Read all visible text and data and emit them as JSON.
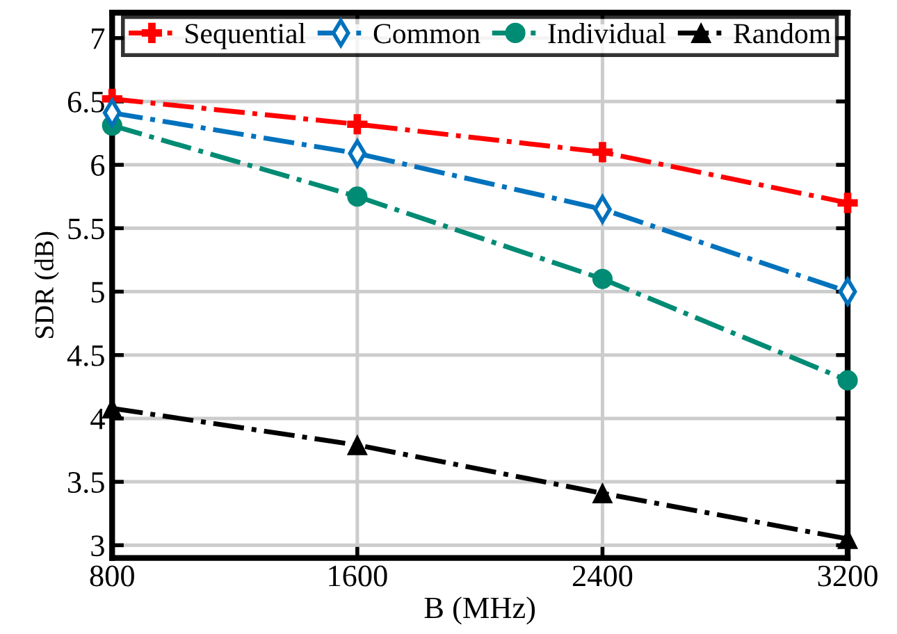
{
  "chart_data": {
    "type": "line",
    "xlabel": "B (MHz)",
    "ylabel": "SDR (dB)",
    "x": [
      800,
      1600,
      2400,
      3200
    ],
    "series": [
      {
        "name": "Sequential",
        "color": "#ff0000",
        "marker": "cross",
        "line_style": "dashdot",
        "values": [
          6.52,
          6.32,
          6.1,
          5.7
        ]
      },
      {
        "name": "Common",
        "color": "#0072bd",
        "marker": "diamond",
        "line_style": "dashdot",
        "values": [
          6.41,
          6.09,
          5.65,
          5.0
        ]
      },
      {
        "name": "Individual",
        "color": "#008b74",
        "marker": "circle",
        "line_style": "dashdot",
        "values": [
          6.31,
          5.75,
          5.1,
          4.3
        ]
      },
      {
        "name": "Random",
        "color": "#000000",
        "marker": "triangle",
        "line_style": "dashdot",
        "values": [
          4.08,
          3.79,
          3.41,
          3.05
        ]
      }
    ],
    "xlim": [
      800,
      3200
    ],
    "xticks": [
      800,
      1600,
      2400,
      3200
    ],
    "ylim": [
      2.9,
      7.2
    ],
    "yticks": [
      3,
      3.5,
      4,
      4.5,
      5,
      5.5,
      6,
      6.5,
      7
    ],
    "grid": true,
    "legend": "top"
  }
}
